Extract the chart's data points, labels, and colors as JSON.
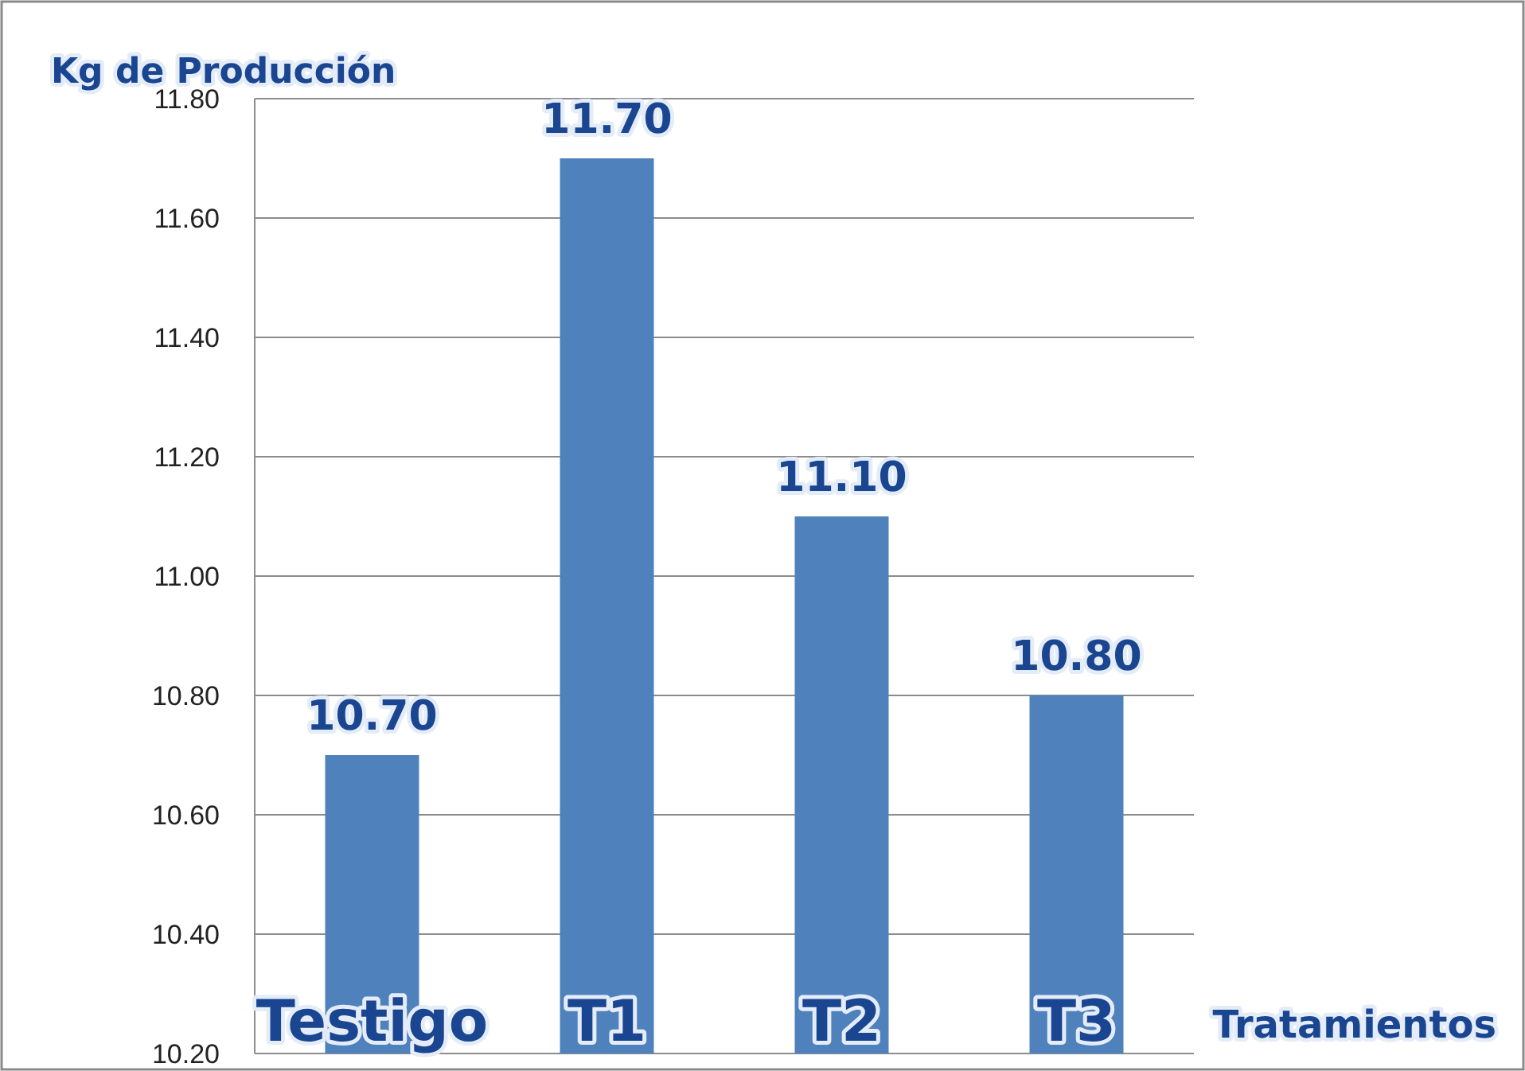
{
  "chart_data": {
    "type": "bar",
    "ylabel": "Kg de Producción",
    "xlabel": "Tratamientos",
    "categories": [
      "Testigo",
      "T1",
      "T2",
      "T3"
    ],
    "values": [
      10.7,
      11.7,
      11.1,
      10.8
    ],
    "color": "#4f81bd",
    "value_labels": [
      "10.70",
      "11.70",
      "11.10",
      "10.80"
    ],
    "ylim": [
      10.2,
      11.8
    ],
    "yticks": [
      {
        "value": 10.2,
        "label": "10.20"
      },
      {
        "value": 10.4,
        "label": "10.40"
      },
      {
        "value": 10.6,
        "label": "10.60"
      },
      {
        "value": 10.8,
        "label": "10.80"
      },
      {
        "value": 11,
        "label": "11.00"
      },
      {
        "value": 11.2,
        "label": "11.20"
      },
      {
        "value": 11.4,
        "label": "11.40"
      },
      {
        "value": 11.6,
        "label": "11.60"
      },
      {
        "value": 11.8,
        "label": "11.80"
      }
    ],
    "grid": "y"
  }
}
